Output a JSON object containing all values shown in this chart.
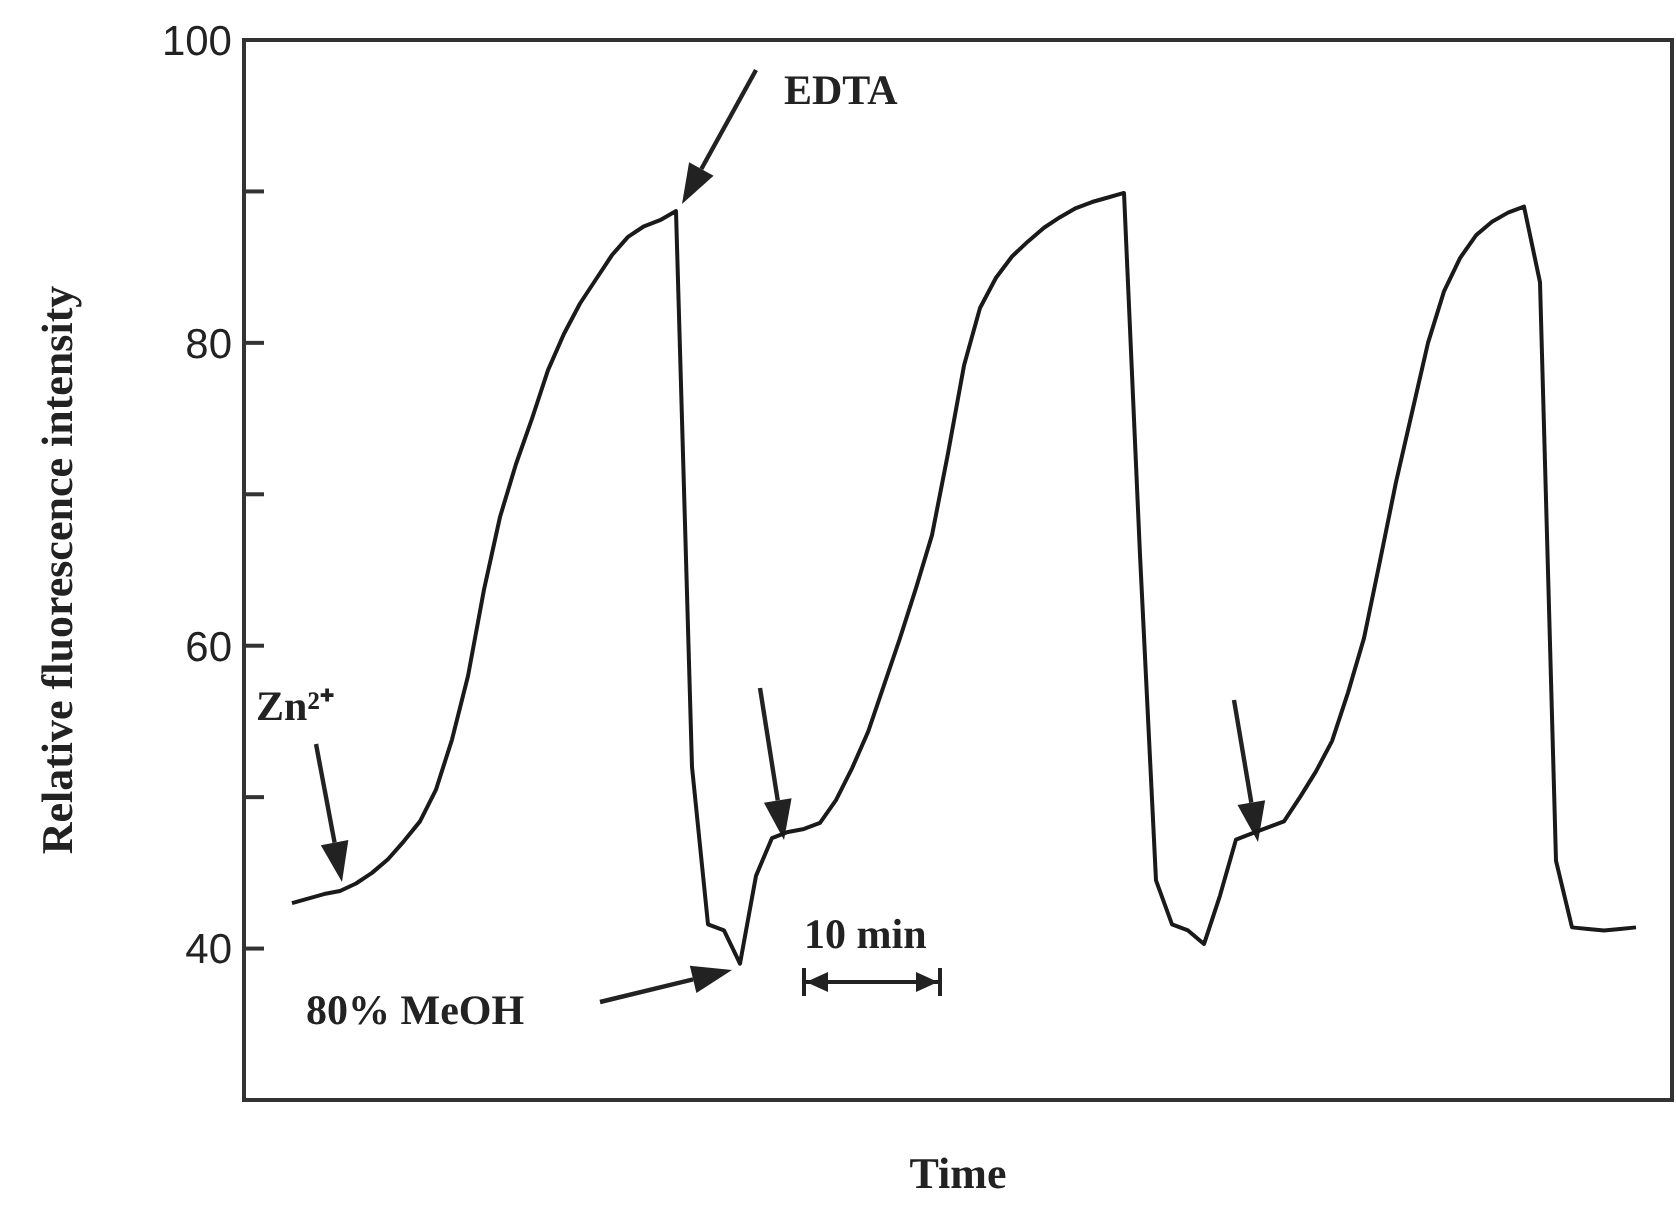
{
  "chart_data": {
    "type": "line",
    "xlabel": "Time",
    "ylabel": "Relative fluorescence intensity",
    "categories": [
      null,
      null,
      null,
      null,
      null,
      null,
      null,
      null,
      null,
      null,
      null,
      null,
      null,
      null,
      null,
      null,
      null,
      null,
      null,
      null,
      null,
      null,
      null,
      null,
      null,
      null,
      null,
      null,
      null,
      null,
      null,
      null,
      null,
      null,
      null,
      null,
      null,
      null,
      null,
      null,
      null,
      null,
      null,
      null,
      null,
      null,
      null,
      null,
      null,
      null,
      null,
      null,
      null,
      null,
      null,
      null,
      null,
      null,
      null,
      null,
      null,
      null,
      null,
      null,
      null,
      null,
      null,
      null,
      null,
      null,
      null,
      null,
      null,
      null,
      null,
      null,
      null,
      null,
      null,
      null,
      null,
      null,
      null,
      null,
      null
    ],
    "series": [
      {
        "color": "#1a1a1a",
        "values": [
          43.0,
          43.3,
          43.6,
          43.8,
          44.3,
          45.0,
          45.9,
          47.1,
          48.4,
          50.5,
          53.8,
          58.0,
          63.7,
          68.5,
          72.0,
          75.0,
          78.2,
          80.6,
          82.6,
          84.2,
          85.8,
          87.0,
          87.7,
          88.1,
          88.7,
          52.0,
          41.6,
          41.2,
          39.0,
          44.8,
          47.3,
          47.7,
          47.9,
          48.3,
          49.8,
          51.9,
          54.3,
          57.4,
          60.5,
          63.8,
          67.3,
          72.7,
          78.5,
          82.3,
          84.3,
          85.7,
          86.7,
          87.6,
          88.3,
          88.9,
          89.3,
          89.6,
          89.9,
          66.0,
          44.5,
          41.6,
          41.2,
          40.3,
          43.5,
          47.2,
          47.6,
          48.0,
          48.4,
          50.0,
          51.7,
          53.7,
          56.9,
          60.5,
          65.6,
          70.8,
          75.4,
          80.0,
          83.4,
          85.6,
          87.1,
          88.0,
          88.6,
          89.0,
          84.0,
          45.8,
          41.4,
          41.3,
          41.2,
          41.3,
          41.4
        ]
      }
    ],
    "ylim": [
      30,
      100
    ],
    "yticks": [
      40,
      {
        "value": 50,
        "label": null
      },
      60,
      {
        "value": 70,
        "label": null
      },
      80,
      {
        "value": 90,
        "label": null
      },
      100
    ],
    "tick_labels": "y",
    "grid": false,
    "legend": false,
    "marker": "none",
    "line_style": "solid",
    "annotations": [
      "EDTA",
      "Zn²⁺",
      "80% MeOH",
      "10 min"
    ]
  }
}
